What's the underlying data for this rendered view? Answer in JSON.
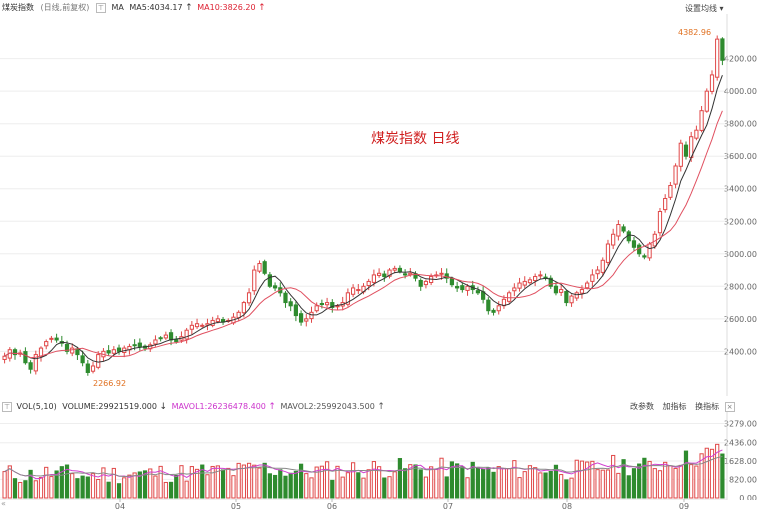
{
  "header": {
    "name": "煤炭指数",
    "mode": "(日线,前复权)",
    "toggle": "⊤",
    "ma_label": "MA",
    "ma5": "MA5:4034.17",
    "ma10": "MA10:3826.20",
    "up_arrow": "↑",
    "settings": "设置均线",
    "settings_caret": "▾"
  },
  "volume_header": {
    "toggle": "⊤",
    "vol_label": "VOL(5,10)",
    "volume": "VOLUME:29921519.000",
    "down_arrow": "↓",
    "mavol1": "MAVOL1:26236478.400",
    "mavol2": "MAVOL2:25992043.500",
    "up_arrow": "↑",
    "tools": [
      "改参数",
      "加指标",
      "换指标"
    ],
    "close": "×"
  },
  "watermark": "煤炭指数  日线",
  "annotations": {
    "high": "4382.96",
    "low": "2266.92"
  },
  "nav": {
    "left": "«"
  },
  "colors": {
    "up": "#e04848",
    "down": "#2e8b2e",
    "ma5": "#333333",
    "ma10": "#e05060",
    "mavol1": "#d040d0",
    "mavol2": "#888888",
    "grid": "#eeeeee"
  },
  "chart_data": [
    {
      "type": "candlestick",
      "title": "",
      "ylim": [
        2150,
        4450
      ],
      "yticks": [
        "2400.00",
        "2600.00",
        "2800.00",
        "3000.00",
        "3200.00",
        "3400.00",
        "3600.00",
        "3800.00",
        "4000.00",
        "4200.00"
      ],
      "x_tick_labels": [
        "04",
        "05",
        "06",
        "07",
        "08",
        "09"
      ],
      "series_close": [
        2370,
        2410,
        2380,
        2390,
        2330,
        2290,
        2380,
        2420,
        2460,
        2480,
        2470,
        2450,
        2400,
        2420,
        2380,
        2330,
        2270,
        2310,
        2380,
        2400,
        2390,
        2410,
        2400,
        2420,
        2430,
        2440,
        2430,
        2420,
        2440,
        2470,
        2480,
        2500,
        2470,
        2460,
        2490,
        2530,
        2560,
        2570,
        2560,
        2570,
        2590,
        2600,
        2580,
        2590,
        2610,
        2640,
        2700,
        2760,
        2900,
        2940,
        2880,
        2800,
        2790,
        2760,
        2700,
        2680,
        2620,
        2580,
        2600,
        2640,
        2680,
        2690,
        2700,
        2670,
        2680,
        2700,
        2760,
        2790,
        2780,
        2800,
        2830,
        2870,
        2880,
        2860,
        2900,
        2910,
        2890,
        2870,
        2880,
        2850,
        2800,
        2830,
        2860,
        2870,
        2880,
        2850,
        2810,
        2790,
        2780,
        2800,
        2780,
        2760,
        2720,
        2650,
        2640,
        2680,
        2720,
        2760,
        2790,
        2820,
        2830,
        2840,
        2860,
        2870,
        2850,
        2800,
        2760,
        2780,
        2700,
        2740,
        2760,
        2780,
        2820,
        2870,
        2900,
        2960,
        3060,
        3120,
        3180,
        3140,
        3080,
        3040,
        3000,
        2980,
        3060,
        3120,
        3260,
        3340,
        3420,
        3540,
        3680,
        3600,
        3720,
        3760,
        3880,
        4000,
        4100,
        4320,
        4190
      ],
      "volume_ylim": [
        0,
        3700
      ],
      "volume_yticks": [
        "0.00",
        "820.00",
        "1628.00",
        "2436.00",
        "3279.00"
      ]
    }
  ]
}
